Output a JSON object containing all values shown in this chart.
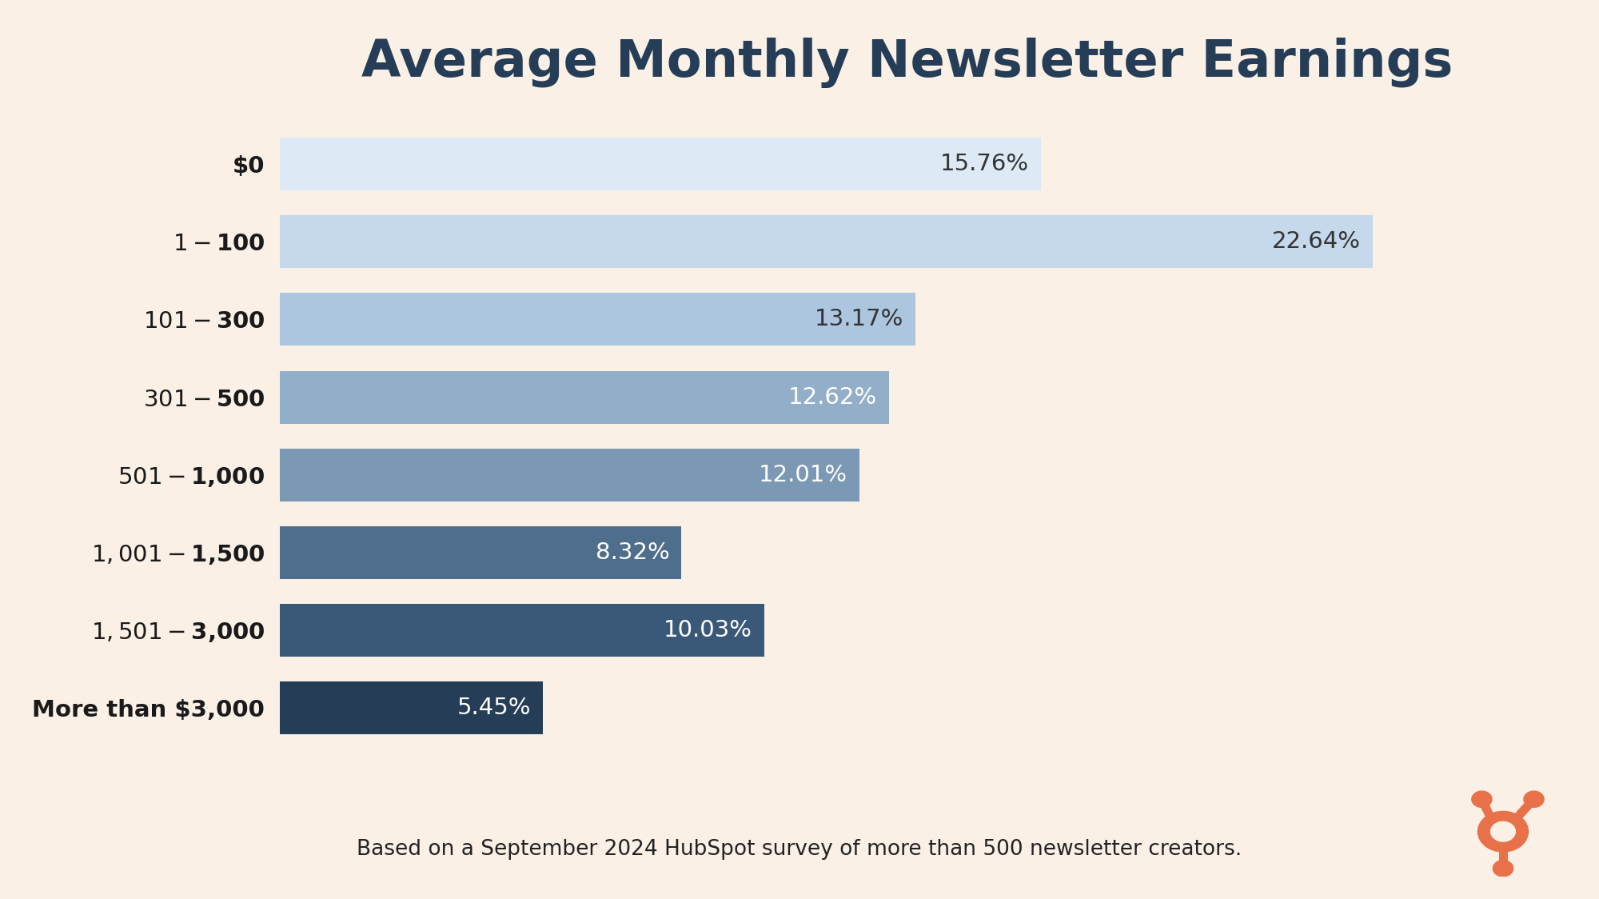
{
  "title": "Average Monthly Newsletter Earnings",
  "categories": [
    "$0",
    "$1-$100",
    "$101-$300",
    "$301-$500",
    "$501-$1,000",
    "$1,001-$1,500",
    "$1,501-$3,000",
    "More than $3,000"
  ],
  "values": [
    15.76,
    22.64,
    13.17,
    12.62,
    12.01,
    8.32,
    10.03,
    5.45
  ],
  "labels": [
    "15.76%",
    "22.64%",
    "13.17%",
    "12.62%",
    "12.01%",
    "8.32%",
    "10.03%",
    "5.45%"
  ],
  "bar_colors": [
    "#ddeaf6",
    "#c5d8ec",
    "#adc6df",
    "#93aec8",
    "#7b98b4",
    "#4f6e8c",
    "#3a5878",
    "#253d56"
  ],
  "label_colors": [
    "#333333",
    "#333333",
    "#333333",
    "#ffffff",
    "#ffffff",
    "#ffffff",
    "#ffffff",
    "#ffffff"
  ],
  "background_color": "#faf0e6",
  "title_color": "#253d56",
  "title_fontsize": 46,
  "label_fontsize": 21,
  "category_fontsize": 21,
  "footnote": "Based on a September 2024 HubSpot survey of more than 500 newsletter creators.",
  "footnote_fontsize": 19,
  "xlim": [
    0,
    26
  ],
  "hubspot_color": "#e8714a"
}
